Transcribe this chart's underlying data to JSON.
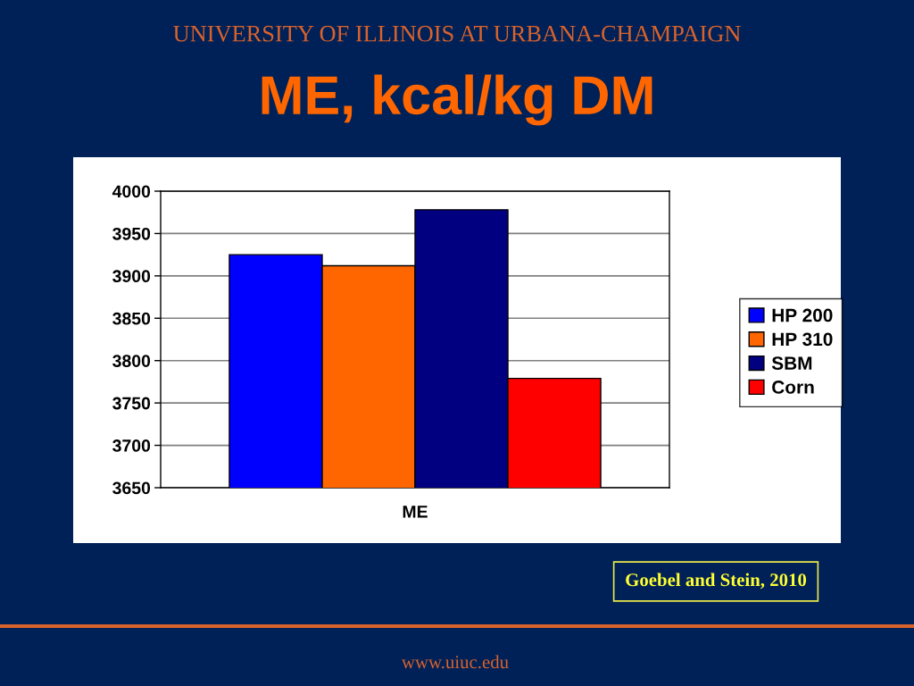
{
  "chart_data": {
    "type": "bar",
    "title": "ME, kcal/kg DM",
    "categories": [
      "ME"
    ],
    "series": [
      {
        "name": "HP 200",
        "color": "#0000ff",
        "values": [
          3925
        ]
      },
      {
        "name": "HP 310",
        "color": "#ff6600",
        "values": [
          3912
        ]
      },
      {
        "name": "SBM",
        "color": "#000080",
        "values": [
          3978
        ]
      },
      {
        "name": "Corn",
        "color": "#ff0000",
        "values": [
          3779
        ]
      }
    ],
    "ylim": [
      3650,
      4000
    ],
    "yticks": [
      3650,
      3700,
      3750,
      3800,
      3850,
      3900,
      3950,
      4000
    ],
    "grid": "y",
    "legend": "right",
    "annotations": [
      "UNIVERSITY OF ILLINOIS AT URBANA-CHAMPAIGN",
      "Goebel and Stein, 2010",
      "www.uiuc.edu"
    ]
  }
}
